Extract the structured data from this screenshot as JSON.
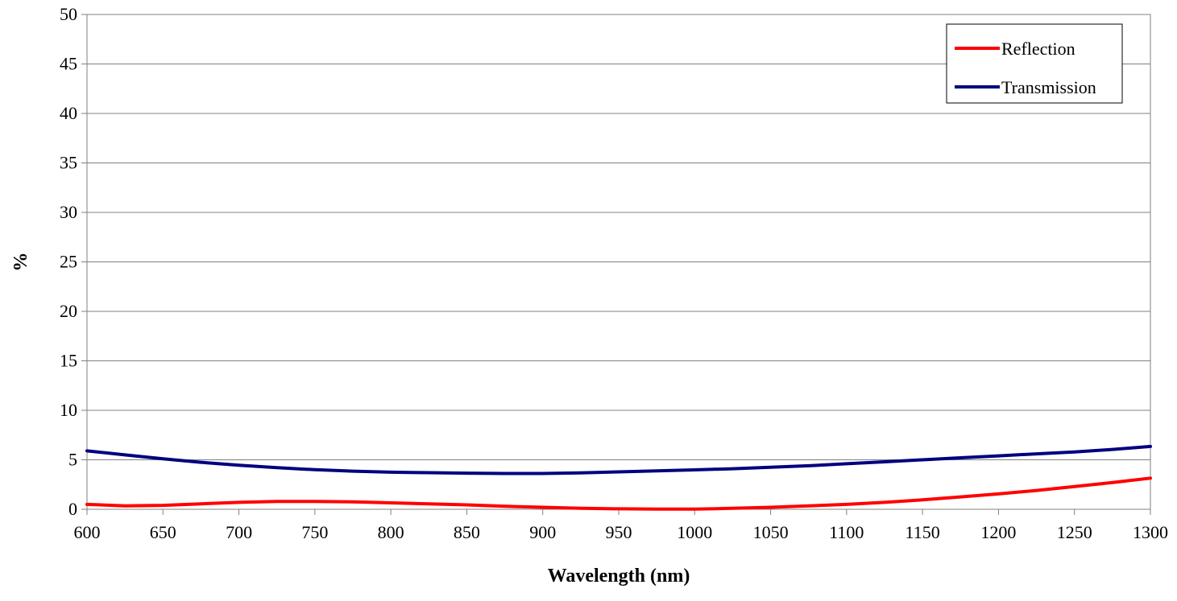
{
  "chart_data": {
    "type": "line",
    "title": "",
    "xlabel": "Wavelength (nm)",
    "ylabel": "%",
    "xlim": [
      600,
      1300
    ],
    "ylim": [
      0,
      50
    ],
    "x_ticks": [
      600,
      650,
      700,
      750,
      800,
      850,
      900,
      950,
      1000,
      1050,
      1100,
      1150,
      1200,
      1250,
      1300
    ],
    "y_ticks": [
      0,
      5,
      10,
      15,
      20,
      25,
      30,
      35,
      40,
      45,
      50
    ],
    "grid": "horizontal",
    "legend_position": "top-right",
    "series": [
      {
        "name": "Reflection",
        "color": "#ff0000",
        "x": [
          600,
          625,
          650,
          675,
          700,
          725,
          750,
          775,
          800,
          825,
          850,
          875,
          900,
          925,
          950,
          975,
          1000,
          1025,
          1050,
          1075,
          1100,
          1125,
          1150,
          1175,
          1200,
          1225,
          1250,
          1275,
          1300
        ],
        "y": [
          0.5,
          0.35,
          0.4,
          0.55,
          0.7,
          0.8,
          0.8,
          0.75,
          0.65,
          0.55,
          0.45,
          0.3,
          0.2,
          0.1,
          0.05,
          0.02,
          0.02,
          0.1,
          0.2,
          0.35,
          0.5,
          0.7,
          0.95,
          1.25,
          1.55,
          1.9,
          2.3,
          2.7,
          3.15
        ]
      },
      {
        "name": "Transmission",
        "color": "#000080",
        "x": [
          600,
          625,
          650,
          675,
          700,
          725,
          750,
          775,
          800,
          825,
          850,
          875,
          900,
          925,
          950,
          975,
          1000,
          1025,
          1050,
          1075,
          1100,
          1125,
          1150,
          1175,
          1200,
          1225,
          1250,
          1275,
          1300
        ],
        "y": [
          5.9,
          5.5,
          5.1,
          4.75,
          4.45,
          4.2,
          4.0,
          3.85,
          3.75,
          3.7,
          3.65,
          3.62,
          3.62,
          3.68,
          3.78,
          3.88,
          3.98,
          4.1,
          4.25,
          4.4,
          4.6,
          4.8,
          5.0,
          5.2,
          5.4,
          5.6,
          5.8,
          6.05,
          6.35
        ]
      }
    ]
  }
}
